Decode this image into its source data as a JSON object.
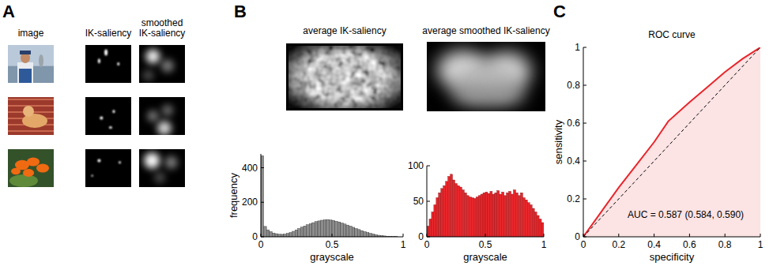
{
  "figure": {
    "panel_letters": [
      "A",
      "B",
      "C"
    ],
    "panel_a": {
      "columns": [
        "image",
        "IK-saliency",
        "smoothed IK-saliency"
      ]
    },
    "panel_b": {
      "maps": [
        "average IK-saliency",
        "average smoothed IK-saliency"
      ]
    }
  },
  "chart_data": [
    {
      "type": "histogram",
      "x_label": "grayscale",
      "y_label": "frequency",
      "color": "#8c8c8c",
      "bins": [
        0,
        0.02,
        0.04,
        0.06,
        0.08,
        0.1,
        0.12,
        0.14,
        0.16,
        0.18,
        0.2,
        0.22,
        0.24,
        0.26,
        0.28,
        0.3,
        0.32,
        0.34,
        0.36,
        0.38,
        0.4,
        0.42,
        0.44,
        0.46,
        0.48,
        0.5,
        0.52,
        0.54,
        0.56,
        0.58,
        0.6,
        0.62,
        0.64,
        0.66,
        0.68,
        0.7,
        0.72,
        0.74,
        0.76,
        0.78,
        0.8,
        0.82,
        0.84,
        0.86,
        0.88,
        0.9,
        0.92,
        0.94,
        0.96,
        0.98,
        1
      ],
      "values": [
        470,
        60,
        40,
        30,
        22,
        18,
        15,
        14,
        16,
        20,
        25,
        32,
        40,
        48,
        56,
        63,
        70,
        76,
        82,
        88,
        92,
        96,
        98,
        100,
        97,
        95,
        90,
        86,
        80,
        74,
        68,
        62,
        55,
        48,
        42,
        36,
        30,
        25,
        20,
        16,
        12,
        9,
        7,
        5,
        3,
        2,
        1,
        1,
        0,
        0
      ],
      "xlim": [
        0,
        1
      ],
      "xticks": [
        0,
        0.5,
        1
      ],
      "ylim": [
        0,
        480
      ],
      "yticks": [
        0,
        200,
        400
      ]
    },
    {
      "type": "histogram",
      "x_label": "grayscale",
      "color": "#e8262b",
      "bins": [
        0,
        0.02,
        0.04,
        0.06,
        0.08,
        0.1,
        0.12,
        0.14,
        0.16,
        0.18,
        0.2,
        0.22,
        0.24,
        0.26,
        0.28,
        0.3,
        0.32,
        0.34,
        0.36,
        0.38,
        0.4,
        0.42,
        0.44,
        0.46,
        0.48,
        0.5,
        0.52,
        0.54,
        0.56,
        0.58,
        0.6,
        0.62,
        0.64,
        0.66,
        0.68,
        0.7,
        0.72,
        0.74,
        0.76,
        0.78,
        0.8,
        0.82,
        0.84,
        0.86,
        0.88,
        0.9,
        0.92,
        0.94,
        0.96,
        0.98,
        1
      ],
      "values": [
        15,
        25,
        35,
        45,
        55,
        62,
        68,
        72,
        78,
        85,
        88,
        80,
        75,
        72,
        70,
        66,
        62,
        58,
        56,
        55,
        54,
        56,
        58,
        60,
        62,
        63,
        61,
        64,
        60,
        62,
        65,
        60,
        63,
        58,
        62,
        64,
        60,
        66,
        62,
        58,
        62,
        55,
        52,
        48,
        45,
        40,
        35,
        30,
        25,
        20
      ],
      "xlim": [
        0,
        1
      ],
      "xticks": [
        0,
        0.5,
        1
      ],
      "ylim": [
        0,
        100
      ],
      "yticks": [
        0,
        50,
        100
      ]
    },
    {
      "type": "line",
      "title": "ROC curve",
      "x_label": "specificity",
      "y_label": "sensitivity",
      "series": [
        {
          "type": "area",
          "color": "#e8262b",
          "line_style": "solid",
          "x": [
            0,
            0.1,
            0.2,
            0.3,
            0.4,
            0.48,
            0.6,
            0.7,
            0.8,
            0.9,
            1
          ],
          "values": [
            0,
            0.13,
            0.26,
            0.38,
            0.5,
            0.61,
            0.71,
            0.79,
            0.87,
            0.94,
            1
          ]
        },
        {
          "type": "line",
          "color": "#000000",
          "line_style": "dashed",
          "x": [
            0,
            1
          ],
          "values": [
            0,
            1
          ]
        }
      ],
      "annotations": [
        "AUC = 0.587 (0.584, 0.590)"
      ],
      "xlim": [
        0,
        1
      ],
      "xticks": [
        0,
        0.2,
        0.4,
        0.6,
        0.8,
        1
      ],
      "ylim": [
        0,
        1
      ],
      "yticks": [
        0,
        0.2,
        0.4,
        0.6,
        0.8,
        1
      ]
    }
  ]
}
